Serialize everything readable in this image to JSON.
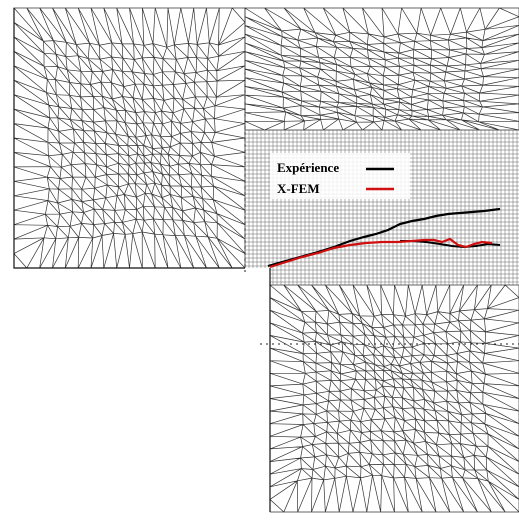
{
  "legend": {
    "items": [
      {
        "label": "Expérience",
        "color": "#000000"
      },
      {
        "label": "X-FEM",
        "color": "#d01010"
      }
    ]
  },
  "colors": {
    "mesh": "#333333",
    "background": "#ffffff"
  }
}
